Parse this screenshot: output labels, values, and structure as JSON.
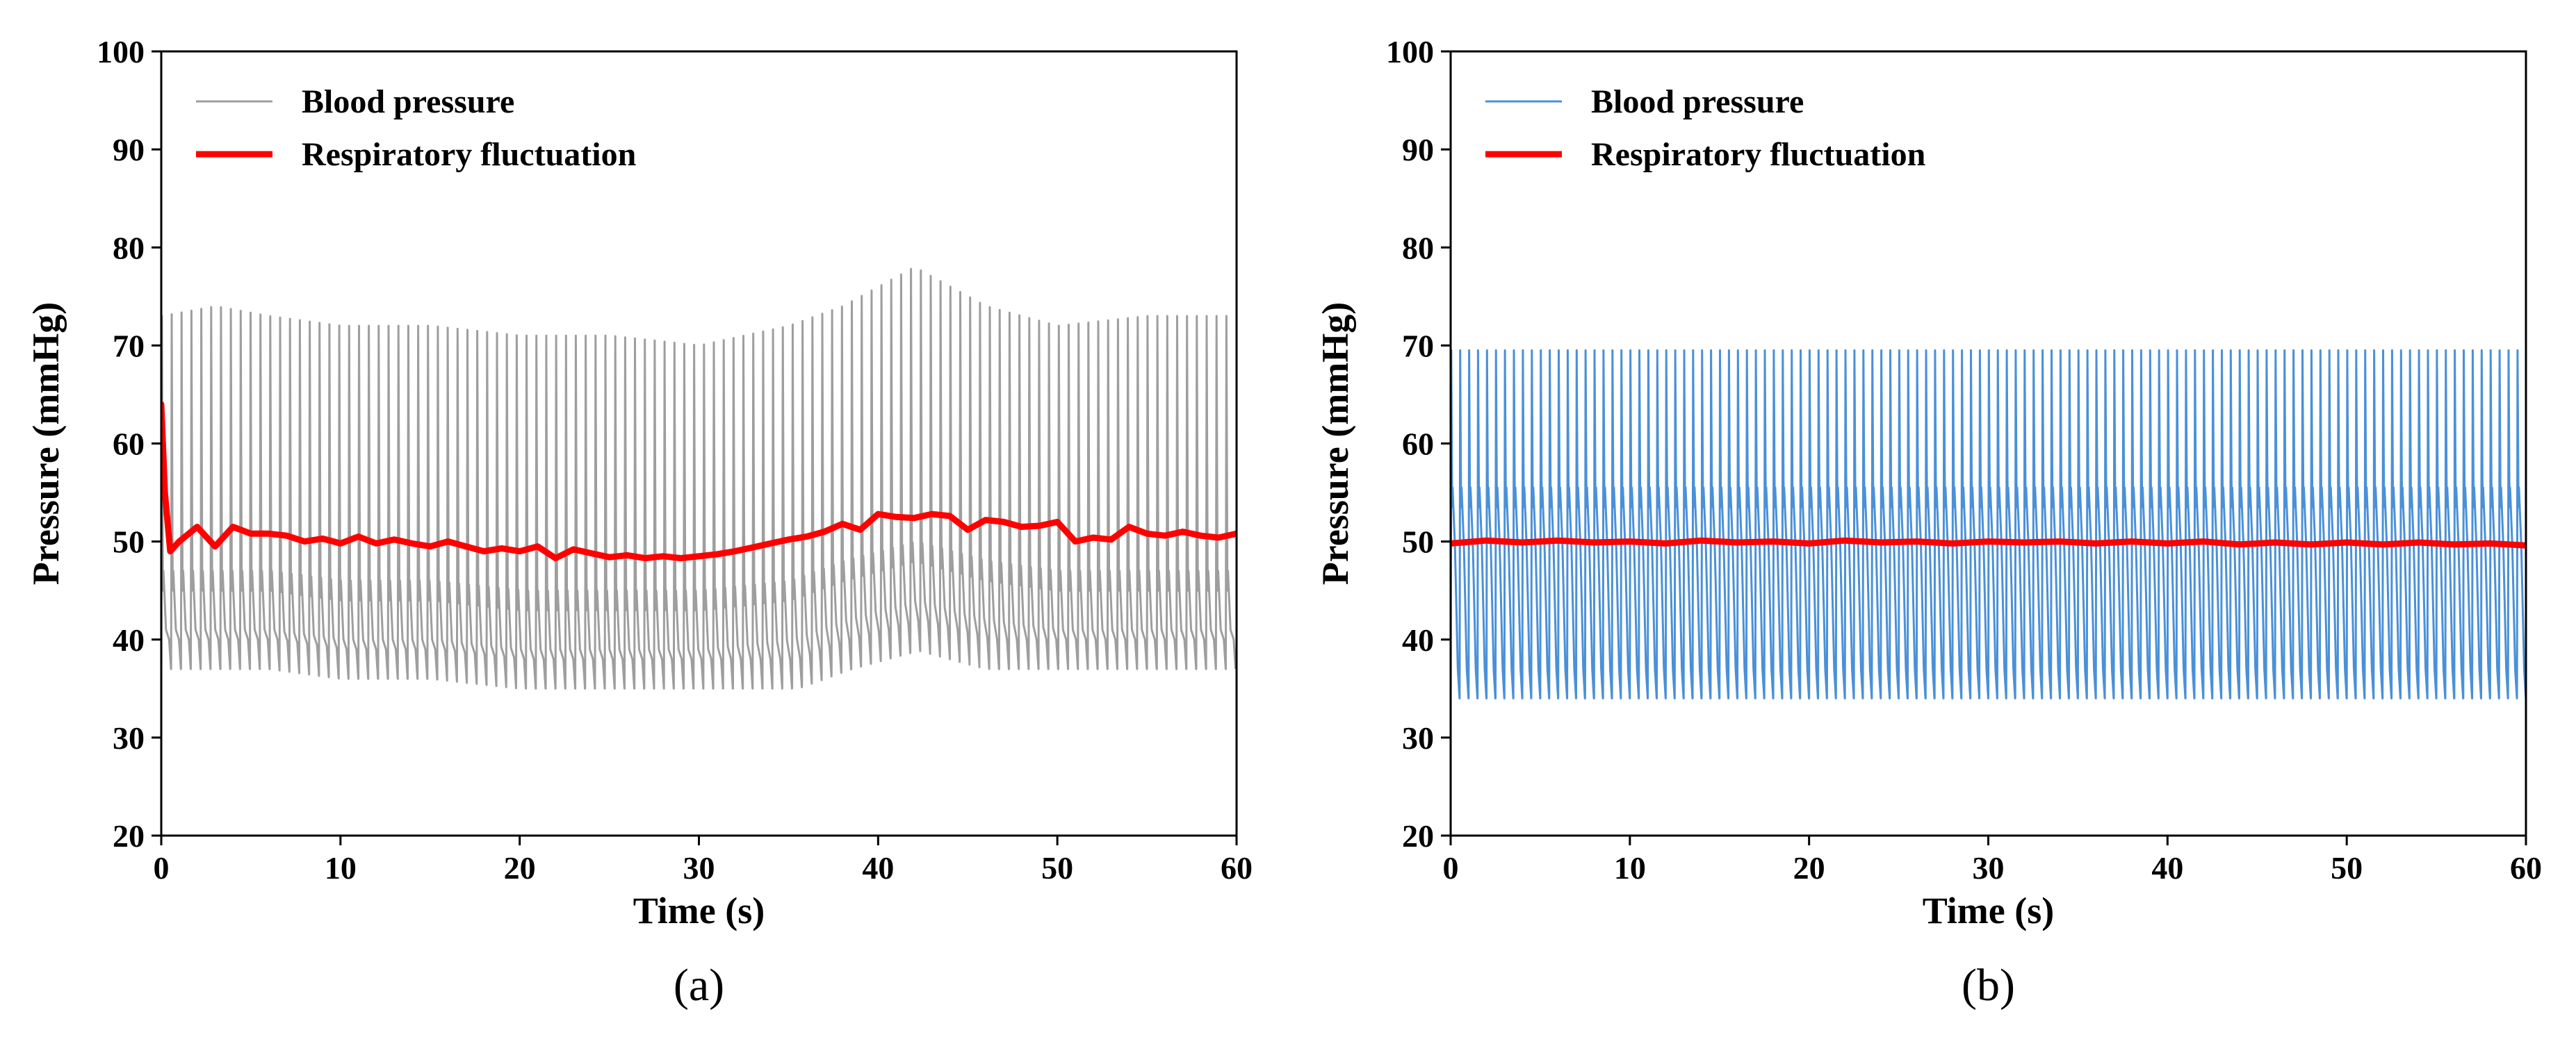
{
  "figure": {
    "panels": [
      "(a)",
      "(b)"
    ]
  },
  "chart_data": [
    {
      "type": "line",
      "panel_label": "(a)",
      "xlabel": "Time (s)",
      "ylabel": "Pressure (mmHg)",
      "xlim": [
        0,
        60
      ],
      "ylim": [
        20,
        100
      ],
      "xticks": [
        0,
        10,
        20,
        30,
        40,
        50,
        60
      ],
      "yticks": [
        20,
        30,
        40,
        50,
        60,
        70,
        80,
        90,
        100
      ],
      "legend_position": "top-left",
      "series": [
        {
          "name": "Blood pressure",
          "color": "#9e9e9e",
          "style": "pulsatile",
          "beat_period_s": 0.55,
          "time_s": [
            0,
            3,
            6,
            10,
            15,
            20,
            25,
            30,
            35,
            38,
            40,
            42,
            44,
            46,
            50,
            55,
            60
          ],
          "systolic_mmHg": [
            73,
            74,
            73,
            72,
            72,
            71,
            71,
            70,
            72,
            74,
            76,
            78,
            76,
            74,
            72,
            73,
            73
          ],
          "diastolic_mmHg": [
            37,
            37,
            37,
            36,
            36,
            35,
            35,
            35,
            35,
            37,
            38,
            39,
            38,
            37,
            37,
            37,
            37
          ],
          "dicrotic_mmHg": [
            45,
            45,
            45,
            44,
            44,
            43,
            43,
            43,
            44,
            46,
            47,
            48,
            47,
            46,
            45,
            45,
            45
          ]
        },
        {
          "name": "Respiratory fluctuation",
          "color": "#ff0000",
          "style": "thick",
          "x": [
            0,
            0.2,
            0.5,
            1,
            2,
            3,
            4,
            5,
            6,
            7,
            8,
            9,
            10,
            11,
            12,
            13,
            14,
            15,
            16,
            17,
            18,
            19,
            20,
            21,
            22,
            23,
            24,
            25,
            26,
            27,
            28,
            29,
            30,
            31,
            32,
            33,
            34,
            35,
            36,
            37,
            38,
            39,
            40,
            41,
            42,
            43,
            44,
            45,
            46,
            47,
            48,
            49,
            50,
            51,
            52,
            53,
            54,
            55,
            56,
            57,
            58,
            59,
            60
          ],
          "y": [
            64,
            55,
            49,
            50,
            51.5,
            49.5,
            51.5,
            50.8,
            50.8,
            50.6,
            50,
            50.3,
            49.8,
            50.5,
            49.8,
            50.2,
            49.8,
            49.5,
            50,
            49.5,
            49,
            49.3,
            49,
            49.5,
            48.3,
            49.2,
            48.8,
            48.4,
            48.6,
            48.3,
            48.5,
            48.3,
            48.5,
            48.7,
            49,
            49.4,
            49.8,
            50.2,
            50.5,
            51,
            51.8,
            51.2,
            52.8,
            52.5,
            52.4,
            52.8,
            52.6,
            51.2,
            52.2,
            52,
            51.5,
            51.6,
            52,
            50,
            50.4,
            50.2,
            51.5,
            50.8,
            50.6,
            51,
            50.6,
            50.4,
            50.8
          ]
        }
      ]
    },
    {
      "type": "line",
      "panel_label": "(b)",
      "xlabel": "Time (s)",
      "ylabel": "Pressure (mmHg)",
      "xlim": [
        0,
        60
      ],
      "ylim": [
        20,
        100
      ],
      "xticks": [
        0,
        10,
        20,
        30,
        40,
        50,
        60
      ],
      "yticks": [
        20,
        30,
        40,
        50,
        60,
        70,
        80,
        90,
        100
      ],
      "legend_position": "top-left",
      "series": [
        {
          "name": "Blood pressure",
          "color": "#4a90d9",
          "style": "pulsatile",
          "beat_period_s": 0.5,
          "time_s": [
            0,
            60
          ],
          "systolic_mmHg": [
            69.5,
            69.5
          ],
          "diastolic_mmHg": [
            34,
            34
          ],
          "dicrotic_mmHg": [
            53.5,
            53.5
          ]
        },
        {
          "name": "Respiratory fluctuation",
          "color": "#ff0000",
          "style": "thick",
          "x": [
            0,
            2,
            4,
            6,
            8,
            10,
            12,
            14,
            16,
            18,
            20,
            22,
            24,
            26,
            28,
            30,
            32,
            34,
            36,
            38,
            40,
            42,
            44,
            46,
            48,
            50,
            52,
            54,
            56,
            58,
            60
          ],
          "y": [
            49.8,
            50.1,
            49.9,
            50.1,
            49.9,
            50.0,
            49.8,
            50.1,
            49.9,
            50.0,
            49.8,
            50.1,
            49.9,
            50.0,
            49.8,
            50.0,
            49.9,
            50.0,
            49.8,
            50.0,
            49.8,
            50.0,
            49.7,
            49.9,
            49.7,
            49.9,
            49.7,
            49.9,
            49.7,
            49.8,
            49.6
          ]
        }
      ]
    }
  ]
}
